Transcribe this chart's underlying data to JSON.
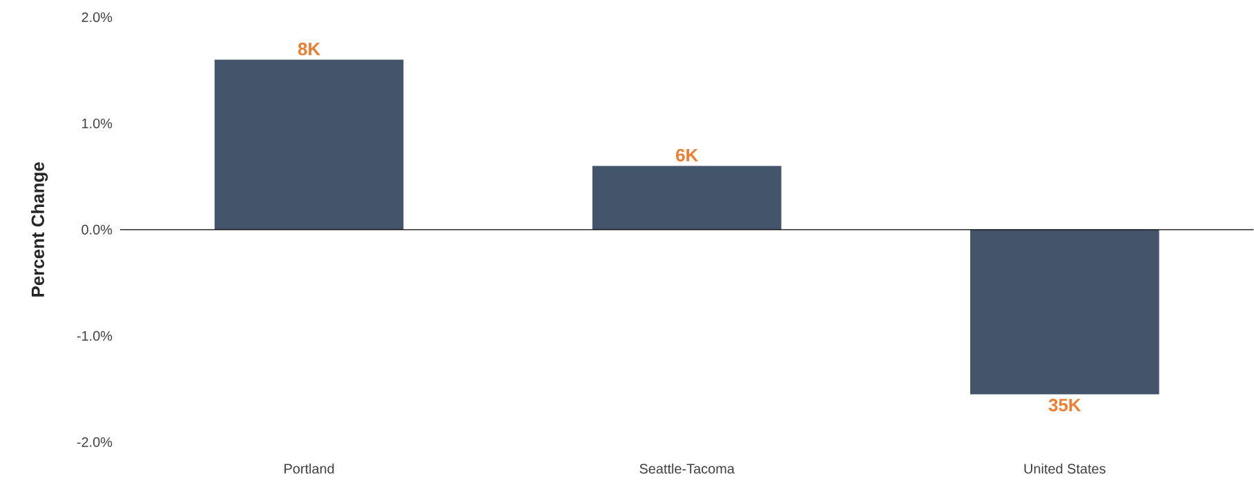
{
  "chart_data": {
    "type": "bar",
    "ylabel": "Percent Change",
    "categories": [
      "Portland",
      "Seattle-Tacoma",
      "United States"
    ],
    "values": [
      1.6,
      0.6,
      -1.55
    ],
    "annotations": [
      {
        "text": "8K",
        "x": "Portland",
        "y": 1.6
      },
      {
        "text": "6K",
        "x": "Seattle-Tacoma",
        "y": 0.6
      },
      {
        "text": "35K",
        "x": "United States",
        "y": -1.55
      }
    ],
    "color": "#44546a",
    "ylim": [
      -2,
      2
    ],
    "yticks": [
      {
        "value": -2,
        "label": "-2.0%"
      },
      {
        "value": -1,
        "label": "-1.0%"
      },
      {
        "value": 0,
        "label": "0.0%"
      },
      {
        "value": 1,
        "label": "1.0%"
      },
      {
        "value": 2,
        "label": "2.0%"
      }
    ],
    "ref_lines": [
      {
        "axis": "y",
        "value": 0,
        "color": "#000000"
      }
    ]
  }
}
